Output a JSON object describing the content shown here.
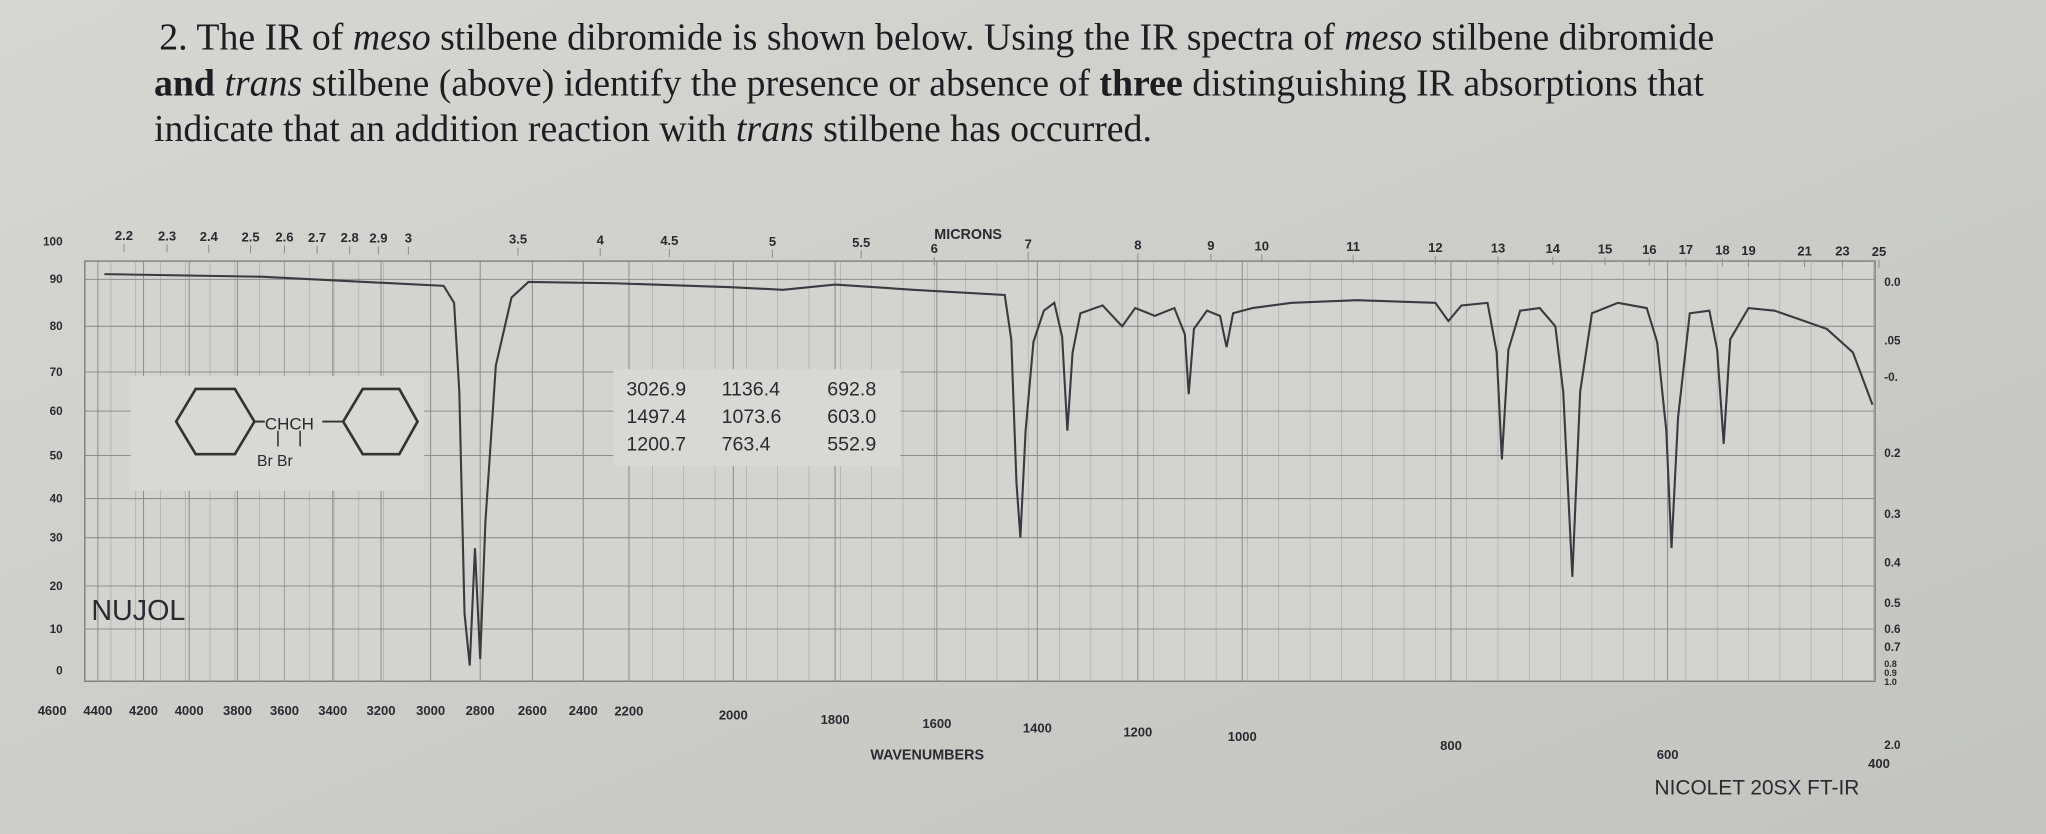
{
  "question": {
    "lines": [
      [
        {
          "text": "2. The IR of "
        },
        {
          "text": "meso",
          "style": "italic"
        },
        {
          "text": " stilbene dibromide is shown below. Using the IR spectra of "
        },
        {
          "text": "meso",
          "style": "italic"
        },
        {
          "text": " stilbene dibromide"
        }
      ],
      [
        {
          "text": "and",
          "style": "bold"
        },
        {
          "text": " "
        },
        {
          "text": "trans",
          "style": "italic"
        },
        {
          "text": " stilbene (above) identify the presence or absence of "
        },
        {
          "text": "three",
          "style": "bold"
        },
        {
          "text": " distinguishing IR absorptions that"
        }
      ],
      [
        {
          "text": "indicate that an addition reaction with "
        },
        {
          "text": "trans",
          "style": "italic"
        },
        {
          "text": " stilbene has occurred."
        }
      ]
    ]
  },
  "spectrum": {
    "microns_title": "MICRONS",
    "wavenumbers_title": "WAVENUMBERS",
    "instrument": "NICOLET 20SX FT-IR",
    "sample_label": "NUJOL",
    "structure": {
      "chain": "CHCH",
      "substituents": "Br Br"
    },
    "peaks": [
      [
        "3026.9",
        "1136.4",
        "692.8"
      ],
      [
        "1497.4",
        "1073.6",
        "603.0"
      ],
      [
        "1200.7",
        "763.4",
        "552.9"
      ]
    ],
    "microns": [
      "2.2",
      "2.3",
      "2.4",
      "2.5",
      "2.6",
      "2.7",
      "2.8",
      "2.9",
      "3",
      "3.5",
      "4",
      "4.5",
      "5",
      "5.5",
      "6",
      "7",
      "8",
      "9",
      "10",
      "11",
      "12",
      "13",
      "14",
      "15",
      "16",
      "17",
      "18",
      "19",
      "21",
      "23",
      "25"
    ],
    "wavenumbers": [
      "4600",
      "4400",
      "4200",
      "4000",
      "3800",
      "3600",
      "3400",
      "3200",
      "3000",
      "2800",
      "2600",
      "2400",
      "2200",
      "2000",
      "1800",
      "1600",
      "1400",
      "1200",
      "1000",
      "800",
      "600",
      "400"
    ],
    "transmittance": [
      "100",
      "90",
      "80",
      "70",
      "60",
      "50",
      "40",
      "30",
      "20",
      "10",
      "0"
    ],
    "absorbance": [
      "0.0",
      ".05",
      "-0.",
      "0.2",
      "0.3",
      "0.4",
      "0.5",
      "0.6",
      "0.7",
      "0.8",
      "0.9",
      "1.0",
      "2.0"
    ]
  }
}
